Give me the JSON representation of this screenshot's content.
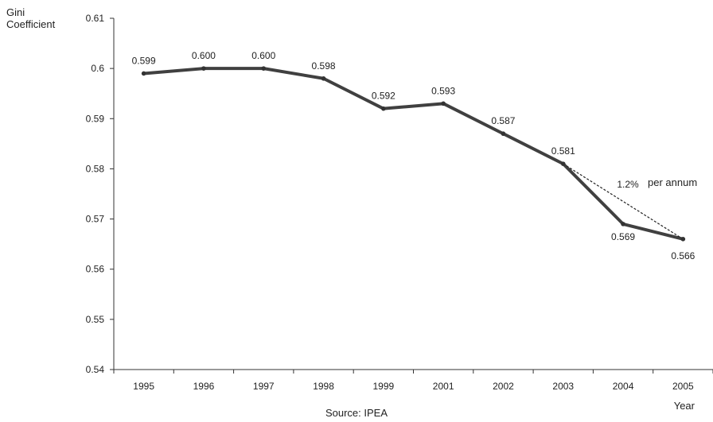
{
  "chart_data": {
    "type": "line",
    "title": "",
    "ylabel_lines": [
      "Gini",
      "Coefficient"
    ],
    "xlabel": "Year",
    "categories": [
      "1995",
      "1996",
      "1997",
      "1998",
      "1999",
      "2001",
      "2002",
      "2003",
      "2004",
      "2005"
    ],
    "series": [
      {
        "values": [
          0.599,
          0.6,
          0.6,
          0.598,
          0.592,
          0.593,
          0.587,
          0.581,
          0.569,
          0.566
        ],
        "data_labels": [
          "0.599",
          "0.600",
          "0.600",
          "0.598",
          "0.592",
          "0.593",
          "0.587",
          "0.581",
          "0.569",
          "0.566"
        ],
        "color": "#404040"
      }
    ],
    "ylim": [
      0.54,
      0.61
    ],
    "yticks": [
      "0.54",
      "0.55",
      "0.56",
      "0.57",
      "0.58",
      "0.59",
      "0.6",
      "0.61"
    ],
    "grid": false,
    "trend": {
      "from": "2003",
      "to": "2005",
      "from_value": 0.581,
      "to_value": 0.566,
      "rate_label": "1.2%",
      "rate_suffix": "per annum",
      "style": "dashed"
    },
    "source": "Source: IPEA"
  }
}
